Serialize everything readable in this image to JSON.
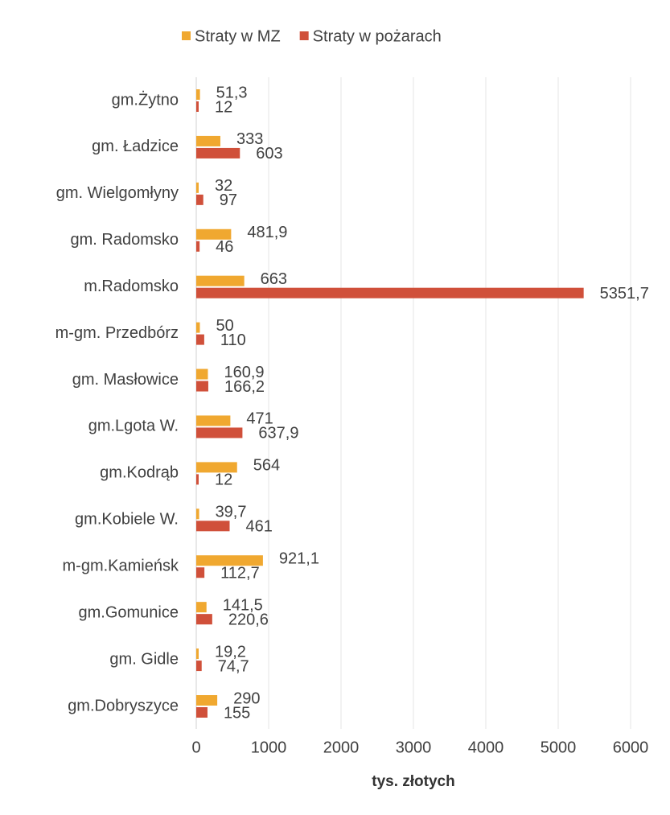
{
  "chart_data": {
    "type": "hbar",
    "categories": [
      "gm.Żytno",
      "gm. Ładzice",
      "gm. Wielgomłyny",
      "gm. Radomsko",
      "m.Radomsko",
      "m-gm. Przedbórz",
      "gm. Masłowice",
      "gm.Lgota W.",
      "gm.Kodrąb",
      "gm.Kobiele W.",
      "m-gm.Kamieńsk",
      "gm.Gomunice",
      "gm. Gidle",
      "gm.Dobryszyce"
    ],
    "series": [
      {
        "name": "Straty w MZ",
        "color": "#f0a830",
        "values": [
          51.3,
          333,
          32,
          481.9,
          663,
          50,
          160.9,
          471,
          564,
          39.7,
          921.1,
          141.5,
          19.2,
          290
        ],
        "value_labels": [
          "51,3",
          "333",
          "32",
          "481,9",
          "663",
          "50",
          "160,9",
          "471",
          "564",
          "39,7",
          "921,1",
          "141,5",
          "19,2",
          "290"
        ]
      },
      {
        "name": "Straty w pożarach",
        "color": "#d0503a",
        "values": [
          12,
          603,
          97,
          46,
          5351.7,
          110,
          166.2,
          637.9,
          12,
          461,
          112.7,
          220.6,
          74.7,
          155
        ],
        "value_labels": [
          "12",
          "603",
          "97",
          "46",
          "5351,7",
          "110",
          "166,2",
          "637,9",
          "12",
          "461",
          "112,7",
          "220,6",
          "74,7",
          "155"
        ]
      }
    ],
    "x_label": "tys. złotych",
    "xlim": [
      0,
      6000
    ],
    "xticks": [
      0,
      1000,
      2000,
      3000,
      4000,
      5000,
      6000
    ],
    "grid": true,
    "legend": "top"
  }
}
